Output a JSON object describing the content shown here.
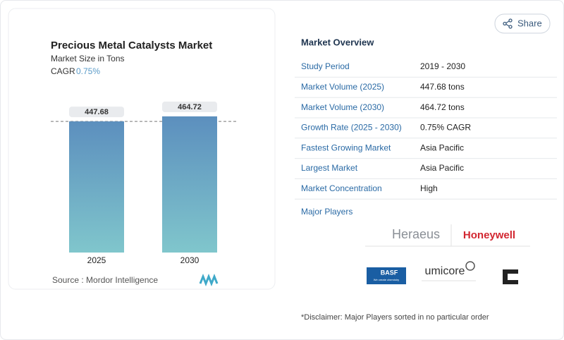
{
  "chart_data": {
    "type": "bar",
    "title": "Precious Metal Catalysts Market",
    "subtitle": "Market Size in Tons",
    "cagr_label": "CAGR",
    "cagr_value": "0.75%",
    "categories": [
      "2025",
      "2030"
    ],
    "values": [
      447.68,
      464.72
    ],
    "source": "Source :  Mordor Intelligence"
  },
  "share_button": "Share",
  "overview": {
    "title": "Market Overview",
    "rows": [
      [
        "Study Period",
        "2019 - 2030"
      ],
      [
        "Market Volume (2025)",
        "447.68 tons"
      ],
      [
        "Market Volume (2030)",
        "464.72 tons"
      ],
      [
        "Growth Rate (2025 - 2030)",
        "0.75% CAGR"
      ],
      [
        "Fastest Growing Market",
        "Asia Pacific"
      ],
      [
        "Largest Market",
        "Asia Pacific"
      ],
      [
        "Market Concentration",
        "High"
      ]
    ]
  },
  "major_players": {
    "title": "Major Players",
    "logos": [
      "Heraeus",
      "Honeywell",
      "BASF",
      "We create chemistry",
      "umicore"
    ]
  },
  "disclaimer": "*Disclaimer: Major Players sorted in no particular order"
}
